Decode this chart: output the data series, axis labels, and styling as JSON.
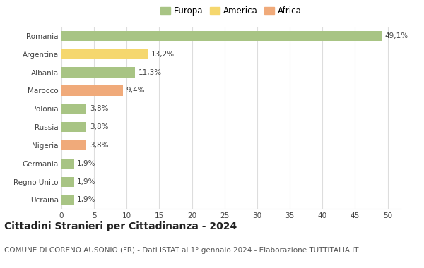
{
  "categories": [
    "Romania",
    "Argentina",
    "Albania",
    "Marocco",
    "Polonia",
    "Russia",
    "Nigeria",
    "Germania",
    "Regno Unito",
    "Ucraina"
  ],
  "values": [
    49.1,
    13.2,
    11.3,
    9.4,
    3.8,
    3.8,
    3.8,
    1.9,
    1.9,
    1.9
  ],
  "labels": [
    "49,1%",
    "13,2%",
    "11,3%",
    "9,4%",
    "3,8%",
    "3,8%",
    "3,8%",
    "1,9%",
    "1,9%",
    "1,9%"
  ],
  "colors": [
    "#a8c484",
    "#f5d76e",
    "#a8c484",
    "#f0aa7a",
    "#a8c484",
    "#a8c484",
    "#f0aa7a",
    "#a8c484",
    "#a8c484",
    "#a8c484"
  ],
  "legend_labels": [
    "Europa",
    "America",
    "Africa"
  ],
  "legend_colors": [
    "#a8c484",
    "#f5d76e",
    "#f0aa7a"
  ],
  "title": "Cittadini Stranieri per Cittadinanza - 2024",
  "subtitle": "COMUNE DI CORENO AUSONIO (FR) - Dati ISTAT al 1° gennaio 2024 - Elaborazione TUTTITALIA.IT",
  "xlim": [
    0,
    52
  ],
  "xticks": [
    0,
    5,
    10,
    15,
    20,
    25,
    30,
    35,
    40,
    45,
    50
  ],
  "background_color": "#ffffff",
  "grid_color": "#dddddd",
  "bar_height": 0.55,
  "title_fontsize": 10,
  "subtitle_fontsize": 7.5,
  "label_fontsize": 7.5,
  "tick_fontsize": 7.5,
  "legend_fontsize": 8.5
}
